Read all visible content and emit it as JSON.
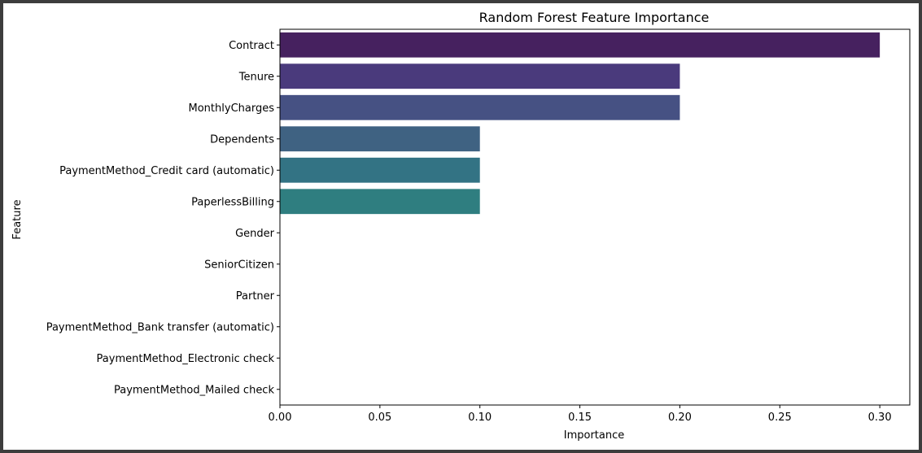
{
  "chart_data": {
    "type": "bar",
    "orientation": "horizontal",
    "title": "Random Forest Feature Importance",
    "xlabel": "Importance",
    "ylabel": "Feature",
    "categories": [
      "Contract",
      "Tenure",
      "MonthlyCharges",
      "Dependents",
      "PaymentMethod_Credit card (automatic)",
      "PaperlessBilling",
      "Gender",
      "SeniorCitizen",
      "Partner",
      "PaymentMethod_Bank transfer (automatic)",
      "PaymentMethod_Electronic check",
      "PaymentMethod_Mailed check"
    ],
    "values": [
      0.3,
      0.2,
      0.2,
      0.1,
      0.1,
      0.1,
      0.0,
      0.0,
      0.0,
      0.0,
      0.0,
      0.0
    ],
    "xlim": [
      0,
      0.315
    ],
    "xticks": [
      0.0,
      0.05,
      0.1,
      0.15,
      0.2,
      0.25,
      0.3
    ],
    "xtick_labels": [
      "0.00",
      "0.05",
      "0.10",
      "0.15",
      "0.20",
      "0.25",
      "0.30"
    ],
    "grid": false,
    "colors": [
      "#46215f",
      "#4a3a7c",
      "#465183",
      "#3f6282",
      "#337384",
      "#2f7e80",
      "#29897e",
      "#2b947a",
      "#35a172",
      "#48ad69",
      "#65bb5c",
      "#8acb49"
    ]
  }
}
